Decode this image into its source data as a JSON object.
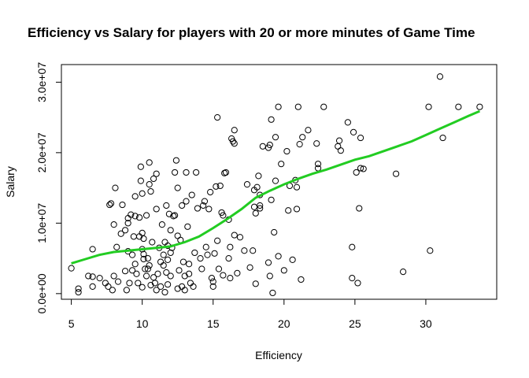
{
  "chart_data": {
    "type": "scatter",
    "title": "Efficiency vs Salary for players with 20 or more minutes of Game Time",
    "xlabel": "Efficiency",
    "ylabel": "Salary",
    "xlim": [
      4.3,
      35
    ],
    "ylim": [
      -800000,
      32500000
    ],
    "x_ticks": [
      {
        "value": 5,
        "label": "5"
      },
      {
        "value": 10,
        "label": "10"
      },
      {
        "value": 15,
        "label": "15"
      },
      {
        "value": 20,
        "label": "20"
      },
      {
        "value": 25,
        "label": "25"
      },
      {
        "value": 30,
        "label": "30"
      }
    ],
    "y_ticks": [
      {
        "value": 0,
        "label": "0.0e+00"
      },
      {
        "value": 10000000,
        "label": "1.0e+07"
      },
      {
        "value": 20000000,
        "label": "2.0e+07"
      },
      {
        "value": 30000000,
        "label": "3.0e+07"
      }
    ],
    "colors": {
      "points": "#000000",
      "smooth": "#22cc22"
    },
    "points": [
      [
        5.0,
        3600000
      ],
      [
        5.5,
        200000
      ],
      [
        5.5,
        700000
      ],
      [
        6.2,
        2500000
      ],
      [
        6.5,
        2400000
      ],
      [
        6.5,
        6300000
      ],
      [
        6.5,
        1000000
      ],
      [
        7.0,
        2200000
      ],
      [
        7.4,
        1500000
      ],
      [
        7.6,
        1000000
      ],
      [
        7.7,
        12600000
      ],
      [
        7.8,
        12800000
      ],
      [
        7.9,
        500000
      ],
      [
        8.0,
        2500000
      ],
      [
        8.0,
        9800000
      ],
      [
        8.1,
        15000000
      ],
      [
        8.2,
        6600000
      ],
      [
        8.3,
        1700000
      ],
      [
        8.5,
        8500000
      ],
      [
        8.6,
        12600000
      ],
      [
        8.8,
        3200000
      ],
      [
        8.8,
        9000000
      ],
      [
        8.9,
        500000
      ],
      [
        9.0,
        6000000
      ],
      [
        9.0,
        10000000
      ],
      [
        9.0,
        10700000
      ],
      [
        9.1,
        1500000
      ],
      [
        9.2,
        11200000
      ],
      [
        9.3,
        3300000
      ],
      [
        9.3,
        5500000
      ],
      [
        9.4,
        8100000
      ],
      [
        9.5,
        11000000
      ],
      [
        9.5,
        13800000
      ],
      [
        9.5,
        4200000
      ],
      [
        9.6,
        2800000
      ],
      [
        9.7,
        1500000
      ],
      [
        9.8,
        8100000
      ],
      [
        9.8,
        10800000
      ],
      [
        9.9,
        16000000
      ],
      [
        9.9,
        18000000
      ],
      [
        10.0,
        14200000
      ],
      [
        10.0,
        8600000
      ],
      [
        10.0,
        900000
      ],
      [
        10.0,
        6300000
      ],
      [
        10.1,
        4900000
      ],
      [
        10.1,
        5600000
      ],
      [
        10.1,
        7800000
      ],
      [
        10.2,
        3500000
      ],
      [
        10.3,
        2500000
      ],
      [
        10.3,
        11100000
      ],
      [
        10.4,
        3500000
      ],
      [
        10.4,
        5000000
      ],
      [
        10.5,
        15500000
      ],
      [
        10.5,
        18600000
      ],
      [
        10.5,
        4000000
      ],
      [
        10.6,
        1200000
      ],
      [
        10.6,
        14500000
      ],
      [
        10.7,
        7300000
      ],
      [
        10.8,
        16300000
      ],
      [
        10.8,
        2300000
      ],
      [
        10.9,
        1500000
      ],
      [
        11.0,
        17000000
      ],
      [
        11.0,
        12000000
      ],
      [
        11.0,
        500000
      ],
      [
        11.1,
        2800000
      ],
      [
        11.2,
        6500000
      ],
      [
        11.3,
        1000000
      ],
      [
        11.3,
        4500000
      ],
      [
        11.4,
        9800000
      ],
      [
        11.5,
        5500000
      ],
      [
        11.5,
        4000000
      ],
      [
        11.6,
        7300000
      ],
      [
        11.6,
        200000
      ],
      [
        11.7,
        12500000
      ],
      [
        11.7,
        3000000
      ],
      [
        11.8,
        6800000
      ],
      [
        11.8,
        4800000
      ],
      [
        11.8,
        1300000
      ],
      [
        11.9,
        11300000
      ],
      [
        12.0,
        9000000
      ],
      [
        12.0,
        2500000
      ],
      [
        12.0,
        5800000
      ],
      [
        12.1,
        6500000
      ],
      [
        12.2,
        11000000
      ],
      [
        12.3,
        17200000
      ],
      [
        12.3,
        11100000
      ],
      [
        12.4,
        18900000
      ],
      [
        12.5,
        15000000
      ],
      [
        12.5,
        8200000
      ],
      [
        12.5,
        700000
      ],
      [
        12.6,
        3300000
      ],
      [
        12.7,
        7600000
      ],
      [
        12.8,
        12500000
      ],
      [
        12.8,
        1000000
      ],
      [
        12.9,
        4500000
      ],
      [
        13.0,
        500000
      ],
      [
        13.0,
        2500000
      ],
      [
        13.1,
        17200000
      ],
      [
        13.1,
        13100000
      ],
      [
        13.2,
        9500000
      ],
      [
        13.3,
        4200000
      ],
      [
        13.3,
        2800000
      ],
      [
        13.4,
        1500000
      ],
      [
        13.5,
        14000000
      ],
      [
        13.6,
        1000000
      ],
      [
        13.7,
        5800000
      ],
      [
        13.8,
        17200000
      ],
      [
        13.9,
        12100000
      ],
      [
        14.1,
        5000000
      ],
      [
        14.2,
        3500000
      ],
      [
        14.3,
        12500000
      ],
      [
        14.4,
        13100000
      ],
      [
        14.5,
        6600000
      ],
      [
        14.6,
        5500000
      ],
      [
        14.7,
        12000000
      ],
      [
        14.8,
        14400000
      ],
      [
        14.9,
        2200000
      ],
      [
        15.0,
        1700000
      ],
      [
        15.0,
        1000000
      ],
      [
        15.1,
        5700000
      ],
      [
        15.2,
        15200000
      ],
      [
        15.3,
        7500000
      ],
      [
        15.3,
        25000000
      ],
      [
        15.4,
        3500000
      ],
      [
        15.5,
        15300000
      ],
      [
        15.6,
        11500000
      ],
      [
        15.7,
        11100000
      ],
      [
        15.7,
        2600000
      ],
      [
        15.8,
        17100000
      ],
      [
        15.9,
        17200000
      ],
      [
        16.1,
        5000000
      ],
      [
        16.1,
        10500000
      ],
      [
        16.2,
        6600000
      ],
      [
        16.2,
        2200000
      ],
      [
        16.3,
        22000000
      ],
      [
        16.4,
        21600000
      ],
      [
        16.5,
        23200000
      ],
      [
        16.5,
        21300000
      ],
      [
        16.5,
        8300000
      ],
      [
        16.7,
        2900000
      ],
      [
        16.9,
        8000000
      ],
      [
        17.2,
        6100000
      ],
      [
        17.4,
        15500000
      ],
      [
        17.6,
        3700000
      ],
      [
        17.8,
        6100000
      ],
      [
        17.9,
        14700000
      ],
      [
        17.9,
        12300000
      ],
      [
        18.0,
        1400000
      ],
      [
        18.0,
        11400000
      ],
      [
        18.1,
        15100000
      ],
      [
        18.2,
        16700000
      ],
      [
        18.3,
        14000000
      ],
      [
        18.3,
        12500000
      ],
      [
        18.3,
        12100000
      ],
      [
        18.5,
        20900000
      ],
      [
        18.9,
        20700000
      ],
      [
        18.9,
        4400000
      ],
      [
        19.0,
        21100000
      ],
      [
        19.0,
        2500000
      ],
      [
        19.1,
        13300000
      ],
      [
        19.1,
        24700000
      ],
      [
        19.2,
        100000
      ],
      [
        19.3,
        8700000
      ],
      [
        19.4,
        16000000
      ],
      [
        19.4,
        22200000
      ],
      [
        19.6,
        26500000
      ],
      [
        19.6,
        5300000
      ],
      [
        19.8,
        18400000
      ],
      [
        20.0,
        3300000
      ],
      [
        20.2,
        20200000
      ],
      [
        20.3,
        11800000
      ],
      [
        20.4,
        15300000
      ],
      [
        20.6,
        4800000
      ],
      [
        20.8,
        16100000
      ],
      [
        20.9,
        12000000
      ],
      [
        20.9,
        15100000
      ],
      [
        21.0,
        26500000
      ],
      [
        21.1,
        21200000
      ],
      [
        21.2,
        2000000
      ],
      [
        21.3,
        22200000
      ],
      [
        21.7,
        23200000
      ],
      [
        22.3,
        21300000
      ],
      [
        22.4,
        18400000
      ],
      [
        22.4,
        17800000
      ],
      [
        22.8,
        26500000
      ],
      [
        23.8,
        20900000
      ],
      [
        23.9,
        21700000
      ],
      [
        24.0,
        20300000
      ],
      [
        24.5,
        24300000
      ],
      [
        24.8,
        6600000
      ],
      [
        24.8,
        2200000
      ],
      [
        24.9,
        22900000
      ],
      [
        25.1,
        17200000
      ],
      [
        25.2,
        1500000
      ],
      [
        25.3,
        12100000
      ],
      [
        25.4,
        17800000
      ],
      [
        25.4,
        22100000
      ],
      [
        25.6,
        17700000
      ],
      [
        27.9,
        17000000
      ],
      [
        28.4,
        3100000
      ],
      [
        30.2,
        26500000
      ],
      [
        30.3,
        6100000
      ],
      [
        31.0,
        30800000
      ],
      [
        31.2,
        22100000
      ],
      [
        32.3,
        26500000
      ],
      [
        33.8,
        26500000
      ]
    ],
    "smooth_line": [
      [
        5.0,
        4300000
      ],
      [
        6.0,
        4900000
      ],
      [
        7.0,
        5500000
      ],
      [
        8.0,
        5900000
      ],
      [
        9.0,
        6100000
      ],
      [
        10.0,
        6300000
      ],
      [
        11.0,
        6500000
      ],
      [
        12.0,
        6700000
      ],
      [
        13.0,
        7300000
      ],
      [
        14.0,
        8100000
      ],
      [
        15.0,
        9300000
      ],
      [
        16.0,
        10600000
      ],
      [
        17.0,
        12000000
      ],
      [
        18.0,
        13600000
      ],
      [
        19.0,
        14600000
      ],
      [
        20.0,
        15500000
      ],
      [
        21.0,
        16300000
      ],
      [
        22.0,
        17000000
      ],
      [
        23.0,
        17600000
      ],
      [
        24.0,
        18300000
      ],
      [
        25.0,
        19000000
      ],
      [
        26.0,
        19500000
      ],
      [
        27.0,
        20200000
      ],
      [
        28.0,
        20900000
      ],
      [
        29.0,
        21600000
      ],
      [
        30.0,
        22500000
      ],
      [
        31.0,
        23400000
      ],
      [
        32.0,
        24300000
      ],
      [
        33.0,
        25200000
      ],
      [
        33.8,
        25900000
      ]
    ]
  }
}
